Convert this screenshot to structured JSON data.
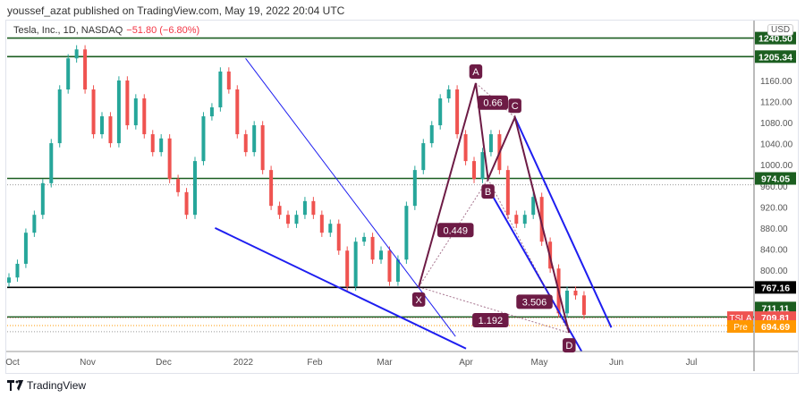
{
  "header": {
    "published": "youssef_azat published on TradingView.com, May 19, 2022 20:04 UTC"
  },
  "symbol": {
    "name": "Tesla, Inc., 1D, NASDAQ",
    "change": "−51.80 (−6.80%)"
  },
  "footer": {
    "logo_text": "TradingView"
  },
  "colors": {
    "up": "#26a69a",
    "down": "#ef5350",
    "level": "#1b5e20",
    "pattern": "#6d1b45",
    "channel": "#1e1ef0",
    "pre": "#ff9800"
  },
  "chart_data": {
    "type": "candlestick",
    "currency": "USD",
    "x_ticks": [
      "Oct",
      "Nov",
      "Dec",
      "2022",
      "Feb",
      "Mar",
      "Apr",
      "May",
      "Jun",
      "Jul"
    ],
    "y_ticks": [
      "1160.00",
      "1120.00",
      "1080.00",
      "1040.00",
      "1000.00",
      "960.00",
      "920.00",
      "880.00",
      "840.00",
      "800.00"
    ],
    "range": {
      "start": "2021-10-01",
      "end": "2022-05-19"
    },
    "closes": [
      786,
      812,
      871,
      905,
      965,
      1041,
      1143,
      1202,
      1219,
      1143,
      1058,
      1092,
      1041,
      1160,
      1075,
      1126,
      1058,
      1024,
      1050,
      973,
      948,
      905,
      1007,
      1092,
      1109,
      1177,
      1143,
      1058,
      1024,
      1075,
      990,
      922,
      905,
      888,
      905,
      931,
      905,
      871,
      888,
      837,
      769,
      854,
      863,
      820,
      837,
      778,
      820,
      922,
      990,
      1041,
      1075,
      1126,
      1143,
      1058,
      1007,
      973,
      1024,
      1058,
      990,
      905,
      888,
      905,
      939,
      854,
      803,
      718,
      761,
      752,
      715
    ],
    "levels": [
      {
        "price": 1240.5,
        "label": "1240.50",
        "color": "#1b5e20"
      },
      {
        "price": 1205.34,
        "label": "1205.34",
        "color": "#1b5e20"
      },
      {
        "price": 974.05,
        "label": "974.05",
        "color": "#1b5e20"
      },
      {
        "price": 767.16,
        "label": "767.16",
        "color": "#000000"
      },
      {
        "price": 711.11,
        "label": "711.11",
        "color": "#1b5e20"
      }
    ],
    "last_price": {
      "tag": "TSLA",
      "price": 709.81,
      "label": "709.81"
    },
    "premarket": {
      "tag": "Pre",
      "price": 694.69,
      "label": "694.69"
    },
    "channels": [
      {
        "from": [
          "2022-01-02",
          1202
        ],
        "to": [
          "2022-03-28",
          674
        ],
        "thin": true
      },
      {
        "from": [
          "2021-12-21",
          880
        ],
        "to": [
          "2022-04-01",
          651
        ],
        "thin": false
      },
      {
        "from": [
          "2022-04-21",
          1090
        ],
        "to": [
          "2022-05-30",
          691
        ],
        "thin": false
      },
      {
        "from": [
          "2022-04-10",
          956
        ],
        "to": [
          "2022-05-18",
          646
        ],
        "thin": false
      }
    ],
    "pattern": {
      "points": [
        {
          "label": "X",
          "date": "2022-03-14",
          "price": 768,
          "pos": "below"
        },
        {
          "label": "A",
          "date": "2022-04-05",
          "price": 1155,
          "pos": "above"
        },
        {
          "label": "B",
          "date": "2022-04-10",
          "price": 973,
          "pos": "below"
        },
        {
          "label": "C",
          "date": "2022-04-21",
          "price": 1090,
          "pos": "above"
        },
        {
          "label": "D",
          "date": "2022-05-13",
          "price": 681,
          "pos": "below"
        }
      ],
      "ratios": [
        {
          "label": "0.66",
          "date": "2022-04-12",
          "price": 1118
        },
        {
          "label": "0.449",
          "date": "2022-03-28",
          "price": 876
        },
        {
          "label": "3.506",
          "date": "2022-04-29",
          "price": 740
        },
        {
          "label": "1.192",
          "date": "2022-04-11",
          "price": 705
        }
      ]
    }
  }
}
